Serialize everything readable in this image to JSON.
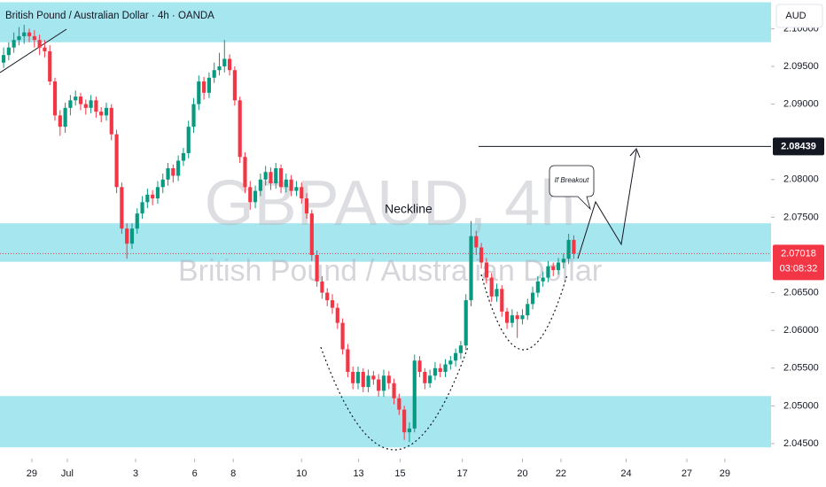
{
  "chart_data": {
    "type": "candlestick",
    "title": "British Pound / Australian Dollar · 4h · OANDA",
    "currency": "AUD",
    "watermark": [
      "GBPAUD, 4h",
      "British Pound / Australian Dollar"
    ],
    "up_color": "#089981",
    "down_color": "#f23645",
    "zone_color": "#a5e6ef",
    "xlim": [
      -0.7,
      149.4
    ],
    "xticks": [
      {
        "value": 5.5,
        "label": "29"
      },
      {
        "value": 12.4,
        "label": "Jul"
      },
      {
        "value": 25.7,
        "label": "3"
      },
      {
        "value": 37.2,
        "label": "6"
      },
      {
        "value": 44.7,
        "label": "8"
      },
      {
        "value": 58,
        "label": "10"
      },
      {
        "value": 69.1,
        "label": "13"
      },
      {
        "value": 77.2,
        "label": "15"
      },
      {
        "value": 89.3,
        "label": "17"
      },
      {
        "value": 101,
        "label": "20"
      },
      {
        "value": 108.5,
        "label": "22"
      },
      {
        "value": 121.2,
        "label": "24"
      },
      {
        "value": 133,
        "label": "27"
      },
      {
        "value": 140.4,
        "label": "29"
      }
    ],
    "ylim": [
      2.043,
      2.1038
    ],
    "yticks": [
      {
        "value": 2.1,
        "label": "2.10000"
      },
      {
        "value": 2.095,
        "label": "2.09500"
      },
      {
        "value": 2.09,
        "label": "2.09000"
      },
      {
        "value": 2.08,
        "label": "2.08000"
      },
      {
        "value": 2.075,
        "label": "2.07500"
      },
      {
        "value": 2.065,
        "label": "2.06500"
      },
      {
        "value": 2.06,
        "label": "2.06000"
      },
      {
        "value": 2.055,
        "label": "2.05500"
      },
      {
        "value": 2.05,
        "label": "2.05000"
      },
      {
        "value": 2.045,
        "label": "2.04500"
      }
    ],
    "zones": [
      [
        2.0982,
        2.1035
      ],
      [
        2.0691,
        2.0742
      ],
      [
        2.0445,
        2.0513
      ]
    ],
    "target_price": 2.08439,
    "last_price": 2.07018,
    "countdown": "03:08:32",
    "annotations": [
      "Neckline",
      "If Breakout"
    ],
    "ohlc": [
      [
        2.0955,
        2.0975,
        2.0948,
        2.0965
      ],
      [
        2.0965,
        2.0982,
        2.0958,
        2.0975
      ],
      [
        2.0975,
        2.0995,
        2.0968,
        2.0985
      ],
      [
        2.0985,
        2.1002,
        2.0978,
        2.099
      ],
      [
        2.099,
        2.1005,
        2.098,
        2.0995
      ],
      [
        2.0995,
        2.1,
        2.0982,
        2.099
      ],
      [
        2.099,
        2.0998,
        2.0975,
        2.0985
      ],
      [
        2.0985,
        2.0992,
        2.0965,
        2.0975
      ],
      [
        2.0975,
        2.0985,
        2.0962,
        2.097
      ],
      [
        2.097,
        2.0978,
        2.0925,
        2.093
      ],
      [
        2.093,
        2.0935,
        2.0878,
        2.0885
      ],
      [
        2.0885,
        2.0892,
        2.0858,
        2.087
      ],
      [
        2.087,
        2.0902,
        2.0862,
        2.0895
      ],
      [
        2.0895,
        2.0912,
        2.0885,
        2.0905
      ],
      [
        2.0905,
        2.0918,
        2.0898,
        2.091
      ],
      [
        2.091,
        2.0915,
        2.0892,
        2.09
      ],
      [
        2.09,
        2.0906,
        2.0886,
        2.0895
      ],
      [
        2.0895,
        2.0912,
        2.0888,
        2.0905
      ],
      [
        2.0905,
        2.091,
        2.0882,
        2.089
      ],
      [
        2.089,
        2.0896,
        2.0876,
        2.0885
      ],
      [
        2.0885,
        2.0902,
        2.0878,
        2.0895
      ],
      [
        2.0895,
        2.09,
        2.0852,
        2.086
      ],
      [
        2.086,
        2.0866,
        2.0782,
        2.079
      ],
      [
        2.079,
        2.0796,
        2.0728,
        2.0735
      ],
      [
        2.0735,
        2.0742,
        2.0695,
        2.0715
      ],
      [
        2.0715,
        2.0742,
        2.0708,
        2.0735
      ],
      [
        2.0735,
        2.0762,
        2.0728,
        2.0755
      ],
      [
        2.0755,
        2.0778,
        2.0748,
        2.077
      ],
      [
        2.077,
        2.0788,
        2.0762,
        2.078
      ],
      [
        2.078,
        2.0786,
        2.0766,
        2.0775
      ],
      [
        2.0775,
        2.0798,
        2.0768,
        2.079
      ],
      [
        2.079,
        2.0808,
        2.0782,
        2.08
      ],
      [
        2.08,
        2.0822,
        2.0792,
        2.0815
      ],
      [
        2.0815,
        2.082,
        2.0796,
        2.0805
      ],
      [
        2.0805,
        2.0832,
        2.0798,
        2.0825
      ],
      [
        2.0825,
        2.0842,
        2.0818,
        2.0835
      ],
      [
        2.0835,
        2.0878,
        2.0828,
        2.087
      ],
      [
        2.087,
        2.0908,
        2.0862,
        2.09
      ],
      [
        2.09,
        2.0938,
        2.0892,
        2.093
      ],
      [
        2.093,
        2.0936,
        2.0906,
        2.0915
      ],
      [
        2.0915,
        2.0942,
        2.0908,
        2.0935
      ],
      [
        2.0935,
        2.0955,
        2.0928,
        2.0945
      ],
      [
        2.0945,
        2.0968,
        2.0938,
        2.095
      ],
      [
        2.095,
        2.0985,
        2.0942,
        2.096
      ],
      [
        2.096,
        2.0966,
        2.0938,
        2.0945
      ],
      [
        2.0945,
        2.095,
        2.0898,
        2.0905
      ],
      [
        2.0905,
        2.091,
        2.0822,
        2.083
      ],
      [
        2.083,
        2.0836,
        2.0782,
        2.079
      ],
      [
        2.079,
        2.0798,
        2.076,
        2.077
      ],
      [
        2.077,
        2.0792,
        2.0762,
        2.0785
      ],
      [
        2.0785,
        2.0808,
        2.0778,
        2.08
      ],
      [
        2.08,
        2.0818,
        2.0792,
        2.081
      ],
      [
        2.081,
        2.0816,
        2.0786,
        2.0795
      ],
      [
        2.0795,
        2.0822,
        2.0788,
        2.0815
      ],
      [
        2.0815,
        2.082,
        2.0782,
        2.079
      ],
      [
        2.079,
        2.0808,
        2.0783,
        2.08
      ],
      [
        2.08,
        2.0806,
        2.0778,
        2.0785
      ],
      [
        2.0785,
        2.0798,
        2.0778,
        2.079
      ],
      [
        2.079,
        2.0796,
        2.0768,
        2.0775
      ],
      [
        2.0775,
        2.0782,
        2.0748,
        2.0755
      ],
      [
        2.0755,
        2.076,
        2.0692,
        2.07
      ],
      [
        2.07,
        2.0706,
        2.0658,
        2.0665
      ],
      [
        2.0665,
        2.0672,
        2.0642,
        2.065
      ],
      [
        2.065,
        2.0656,
        2.0632,
        2.064
      ],
      [
        2.064,
        2.0648,
        2.0622,
        2.063
      ],
      [
        2.063,
        2.0636,
        2.0602,
        2.061
      ],
      [
        2.061,
        2.0616,
        2.0568,
        2.0575
      ],
      [
        2.0575,
        2.0582,
        2.0538,
        2.0545
      ],
      [
        2.0545,
        2.0552,
        2.0522,
        2.053
      ],
      [
        2.053,
        2.0552,
        2.0522,
        2.0545
      ],
      [
        2.0545,
        2.055,
        2.0518,
        2.0525
      ],
      [
        2.0525,
        2.0548,
        2.0518,
        2.054
      ],
      [
        2.054,
        2.0546,
        2.0528,
        2.0535
      ],
      [
        2.0535,
        2.0542,
        2.0512,
        2.052
      ],
      [
        2.052,
        2.0548,
        2.0512,
        2.054
      ],
      [
        2.054,
        2.0546,
        2.0522,
        2.053
      ],
      [
        2.053,
        2.0536,
        2.0502,
        2.051
      ],
      [
        2.051,
        2.0516,
        2.0488,
        2.0495
      ],
      [
        2.0495,
        2.05,
        2.0455,
        2.0465
      ],
      [
        2.0465,
        2.0478,
        2.0452,
        2.047
      ],
      [
        2.047,
        2.0568,
        2.0465,
        2.056
      ],
      [
        2.056,
        2.0566,
        2.0538,
        2.0545
      ],
      [
        2.0545,
        2.055,
        2.0522,
        2.053
      ],
      [
        2.053,
        2.0548,
        2.0524,
        2.054
      ],
      [
        2.054,
        2.0558,
        2.0534,
        2.055
      ],
      [
        2.055,
        2.0556,
        2.0538,
        2.0545
      ],
      [
        2.0545,
        2.0562,
        2.0538,
        2.0555
      ],
      [
        2.0555,
        2.0566,
        2.0548,
        2.056
      ],
      [
        2.056,
        2.0576,
        2.0552,
        2.057
      ],
      [
        2.057,
        2.0586,
        2.0562,
        2.058
      ],
      [
        2.058,
        2.0648,
        2.0574,
        2.064
      ],
      [
        2.064,
        2.0745,
        2.0632,
        2.0725
      ],
      [
        2.0725,
        2.0732,
        2.07,
        2.071
      ],
      [
        2.071,
        2.0716,
        2.0682,
        2.069
      ],
      [
        2.069,
        2.0696,
        2.0662,
        2.067
      ],
      [
        2.067,
        2.0676,
        2.0638,
        2.0645
      ],
      [
        2.0645,
        2.0662,
        2.0638,
        2.0655
      ],
      [
        2.0655,
        2.066,
        2.0618,
        2.0625
      ],
      [
        2.0625,
        2.063,
        2.0602,
        2.061
      ],
      [
        2.061,
        2.0628,
        2.0604,
        2.062
      ],
      [
        2.062,
        2.0625,
        2.059,
        2.0615
      ],
      [
        2.0615,
        2.0628,
        2.0608,
        2.062
      ],
      [
        2.062,
        2.0642,
        2.0614,
        2.0635
      ],
      [
        2.0635,
        2.0658,
        2.0628,
        2.065
      ],
      [
        2.065,
        2.0672,
        2.0644,
        2.0665
      ],
      [
        2.0665,
        2.0678,
        2.0658,
        2.067
      ],
      [
        2.067,
        2.0692,
        2.0664,
        2.0685
      ],
      [
        2.0685,
        2.069,
        2.0672,
        2.068
      ],
      [
        2.068,
        2.0696,
        2.0674,
        2.069
      ],
      [
        2.069,
        2.0702,
        2.0682,
        2.0695
      ],
      [
        2.0695,
        2.0728,
        2.0688,
        2.072
      ],
      [
        2.072,
        2.0726,
        2.0695,
        2.07018
      ]
    ]
  }
}
